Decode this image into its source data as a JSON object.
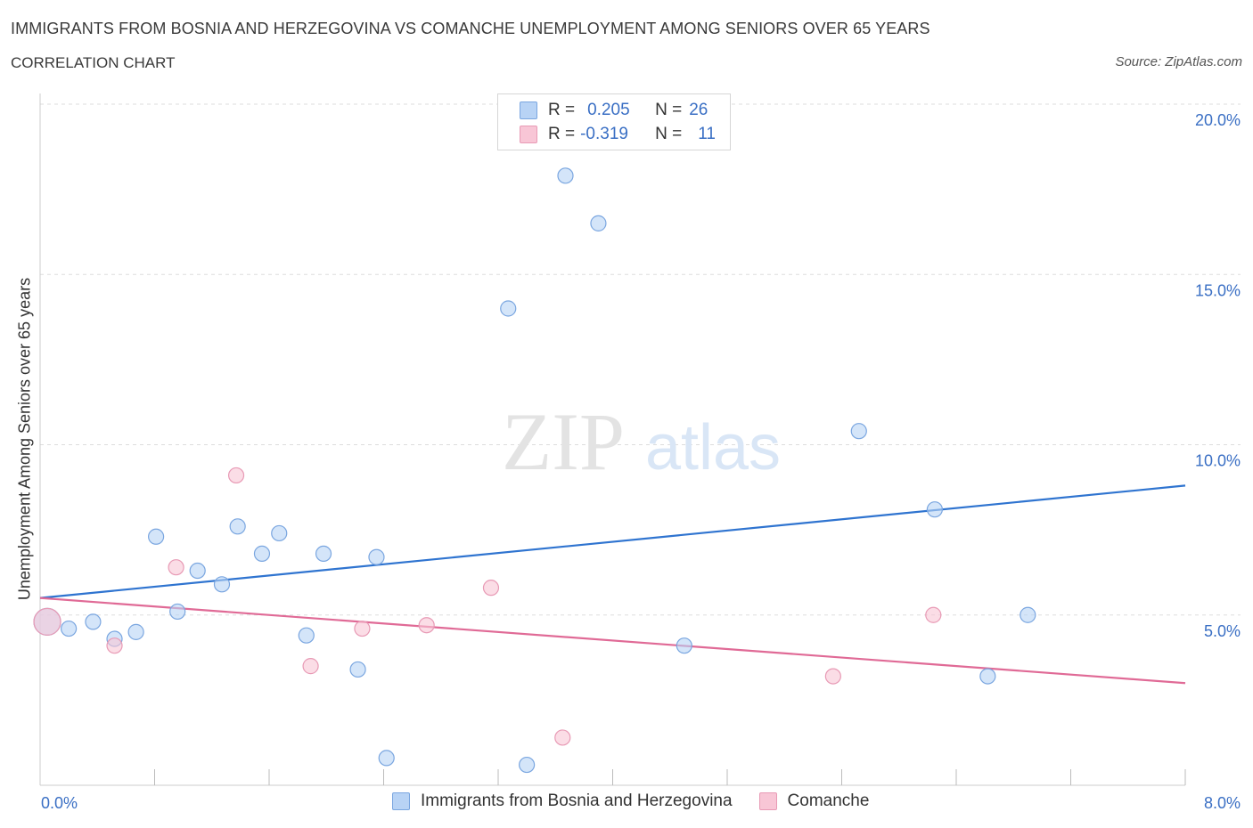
{
  "title": "IMMIGRANTS FROM BOSNIA AND HERZEGOVINA VS COMANCHE UNEMPLOYMENT AMONG SENIORS OVER 65 YEARS",
  "subtitle": "CORRELATION CHART",
  "source": "Source: ZipAtlas.com",
  "watermark": {
    "zip": "ZIP",
    "atlas": "atlas"
  },
  "legend": {
    "r_label": "R =",
    "n_label": "N =",
    "series1": {
      "r": "0.205",
      "n": "26"
    },
    "series2": {
      "r": "-0.319",
      "n": "11"
    }
  },
  "colors": {
    "blue_fill": "#b8d3f5",
    "blue_stroke": "#7aa6e0",
    "blue_line": "#2f74d0",
    "pink_fill": "#f8c6d6",
    "pink_stroke": "#e89ab5",
    "pink_line": "#e06a96",
    "grid": "#dddddd",
    "tick_text": "#3a6fc4"
  },
  "chart_data": {
    "type": "scatter",
    "title": "IMMIGRANTS FROM BOSNIA AND HERZEGOVINA VS COMANCHE UNEMPLOYMENT AMONG SENIORS OVER 65 YEARS",
    "xlabel": "",
    "ylabel": "Unemployment Among Seniors over 65 years",
    "xlim": [
      0,
      8
    ],
    "ylim": [
      0,
      20
    ],
    "x_tick_labels": [
      {
        "value": 0,
        "label": "0.0%"
      },
      {
        "value": 8,
        "label": "8.0%"
      }
    ],
    "y_tick_labels": [
      {
        "value": 5,
        "label": "5.0%"
      },
      {
        "value": 10,
        "label": "10.0%"
      },
      {
        "value": 15,
        "label": "15.0%"
      },
      {
        "value": 20,
        "label": "20.0%"
      }
    ],
    "series": [
      {
        "name": "Immigrants from Bosnia and Herzegovina",
        "color": "blue",
        "points": [
          {
            "x": 0.05,
            "y": 4.8,
            "big": true
          },
          {
            "x": 0.2,
            "y": 4.6
          },
          {
            "x": 0.37,
            "y": 4.8
          },
          {
            "x": 0.52,
            "y": 4.3
          },
          {
            "x": 0.67,
            "y": 4.5
          },
          {
            "x": 0.81,
            "y": 7.3
          },
          {
            "x": 0.96,
            "y": 5.1
          },
          {
            "x": 1.1,
            "y": 6.3
          },
          {
            "x": 1.27,
            "y": 5.9
          },
          {
            "x": 1.38,
            "y": 7.6
          },
          {
            "x": 1.55,
            "y": 6.8
          },
          {
            "x": 1.67,
            "y": 7.4
          },
          {
            "x": 1.86,
            "y": 4.4
          },
          {
            "x": 1.98,
            "y": 6.8
          },
          {
            "x": 2.22,
            "y": 3.4
          },
          {
            "x": 2.35,
            "y": 6.7
          },
          {
            "x": 2.42,
            "y": 0.8
          },
          {
            "x": 3.27,
            "y": 14.0
          },
          {
            "x": 3.4,
            "y": 0.6
          },
          {
            "x": 3.67,
            "y": 17.9
          },
          {
            "x": 3.9,
            "y": 16.5
          },
          {
            "x": 4.5,
            "y": 4.1
          },
          {
            "x": 5.72,
            "y": 10.4
          },
          {
            "x": 6.25,
            "y": 8.1
          },
          {
            "x": 6.62,
            "y": 3.2
          },
          {
            "x": 6.9,
            "y": 5.0
          }
        ],
        "trend": {
          "x0": 0,
          "y0": 5.5,
          "x1": 8,
          "y1": 8.8
        }
      },
      {
        "name": "Comanche",
        "color": "pink",
        "points": [
          {
            "x": 0.05,
            "y": 4.8,
            "big": true
          },
          {
            "x": 0.52,
            "y": 4.1
          },
          {
            "x": 0.95,
            "y": 6.4
          },
          {
            "x": 1.37,
            "y": 9.1
          },
          {
            "x": 1.89,
            "y": 3.5
          },
          {
            "x": 2.25,
            "y": 4.6
          },
          {
            "x": 2.7,
            "y": 4.7
          },
          {
            "x": 3.15,
            "y": 5.8
          },
          {
            "x": 3.65,
            "y": 1.4
          },
          {
            "x": 5.54,
            "y": 3.2
          },
          {
            "x": 6.24,
            "y": 5.0
          }
        ],
        "trend": {
          "x0": 0,
          "y0": 5.5,
          "x1": 8,
          "y1": 3.0
        }
      }
    ]
  }
}
